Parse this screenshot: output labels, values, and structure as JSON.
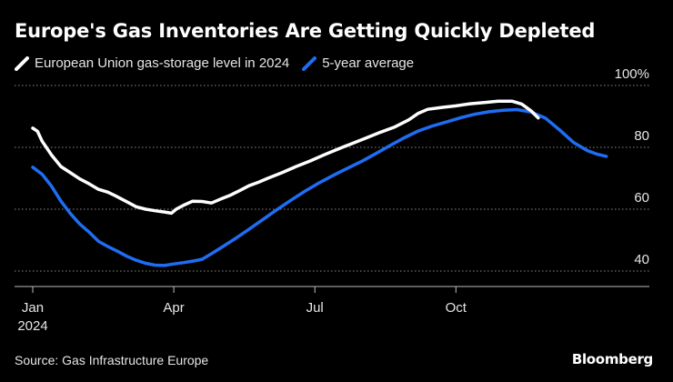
{
  "title": "Europe's Gas Inventories Are Getting Quickly Depleted",
  "source": "Source: Gas Infrastructure Europe",
  "logo": "Bloomberg",
  "chart_data": {
    "type": "line",
    "title": "Europe's Gas Inventories Are Getting Quickly Depleted",
    "ylim": [
      35,
      100
    ],
    "y_unit": "%",
    "yticks": [
      {
        "value": 100,
        "label": "100%"
      },
      {
        "value": 80,
        "label": "80"
      },
      {
        "value": 60,
        "label": "60"
      },
      {
        "value": 40,
        "label": "40"
      }
    ],
    "xticks": [
      {
        "month": 1,
        "label": "Jan",
        "sublabel": "2024"
      },
      {
        "month": 4,
        "label": "Apr",
        "sublabel": ""
      },
      {
        "month": 7,
        "label": "Jul",
        "sublabel": ""
      },
      {
        "month": 10,
        "label": "Oct",
        "sublabel": ""
      }
    ],
    "x_unit": "month (1 = Jan 1, 2024)",
    "grid": "horizontal dotted",
    "legend_position": "top-left",
    "series": [
      {
        "name": "European Union gas-storage level in 2024",
        "color": "#ffffff",
        "points": [
          [
            1.0,
            86.2
          ],
          [
            1.1,
            85.2
          ],
          [
            1.2,
            82.0
          ],
          [
            1.4,
            77.5
          ],
          [
            1.6,
            73.8
          ],
          [
            1.8,
            71.8
          ],
          [
            2.0,
            69.8
          ],
          [
            2.2,
            68.2
          ],
          [
            2.4,
            66.4
          ],
          [
            2.6,
            65.5
          ],
          [
            2.8,
            64.0
          ],
          [
            3.0,
            62.4
          ],
          [
            3.2,
            60.8
          ],
          [
            3.4,
            60.0
          ],
          [
            3.6,
            59.5
          ],
          [
            3.8,
            59.1
          ],
          [
            3.95,
            58.7
          ],
          [
            4.05,
            60.0
          ],
          [
            4.2,
            61.2
          ],
          [
            4.4,
            62.6
          ],
          [
            4.6,
            62.5
          ],
          [
            4.8,
            62.0
          ],
          [
            5.0,
            63.3
          ],
          [
            5.2,
            64.5
          ],
          [
            5.4,
            66.0
          ],
          [
            5.6,
            67.6
          ],
          [
            5.8,
            68.7
          ],
          [
            6.0,
            70.0
          ],
          [
            6.3,
            71.8
          ],
          [
            6.6,
            73.8
          ],
          [
            6.9,
            75.6
          ],
          [
            7.2,
            77.6
          ],
          [
            7.5,
            79.5
          ],
          [
            7.8,
            81.3
          ],
          [
            8.1,
            83.1
          ],
          [
            8.4,
            84.9
          ],
          [
            8.7,
            86.6
          ],
          [
            9.0,
            88.9
          ],
          [
            9.2,
            91.0
          ],
          [
            9.4,
            92.3
          ],
          [
            9.7,
            92.9
          ],
          [
            10.0,
            93.4
          ],
          [
            10.3,
            94.1
          ],
          [
            10.6,
            94.5
          ],
          [
            10.9,
            94.9
          ],
          [
            11.2,
            94.9
          ],
          [
            11.4,
            94.0
          ],
          [
            11.6,
            91.8
          ],
          [
            11.75,
            89.5
          ]
        ]
      },
      {
        "name": "5-year average",
        "color": "#1f6df2",
        "points": [
          [
            1.0,
            73.6
          ],
          [
            1.2,
            71.3
          ],
          [
            1.4,
            67.4
          ],
          [
            1.6,
            62.6
          ],
          [
            1.8,
            58.6
          ],
          [
            2.0,
            55.2
          ],
          [
            2.2,
            52.6
          ],
          [
            2.4,
            49.6
          ],
          [
            2.6,
            47.9
          ],
          [
            2.8,
            46.4
          ],
          [
            3.0,
            44.8
          ],
          [
            3.2,
            43.5
          ],
          [
            3.4,
            42.5
          ],
          [
            3.6,
            41.9
          ],
          [
            3.8,
            41.8
          ],
          [
            4.0,
            42.3
          ],
          [
            4.2,
            42.7
          ],
          [
            4.4,
            43.2
          ],
          [
            4.6,
            43.8
          ],
          [
            4.8,
            45.6
          ],
          [
            5.0,
            47.5
          ],
          [
            5.3,
            50.4
          ],
          [
            5.6,
            53.5
          ],
          [
            5.9,
            56.7
          ],
          [
            6.2,
            59.9
          ],
          [
            6.5,
            63.0
          ],
          [
            6.8,
            65.9
          ],
          [
            7.1,
            68.6
          ],
          [
            7.4,
            71.0
          ],
          [
            7.7,
            73.3
          ],
          [
            8.0,
            75.5
          ],
          [
            8.3,
            78.0
          ],
          [
            8.6,
            80.6
          ],
          [
            8.9,
            83.1
          ],
          [
            9.2,
            85.3
          ],
          [
            9.5,
            86.9
          ],
          [
            9.8,
            88.2
          ],
          [
            10.1,
            89.6
          ],
          [
            10.4,
            90.7
          ],
          [
            10.7,
            91.5
          ],
          [
            11.0,
            92.0
          ],
          [
            11.3,
            92.2
          ],
          [
            11.6,
            91.4
          ],
          [
            11.9,
            89.5
          ],
          [
            12.2,
            85.7
          ],
          [
            12.5,
            81.6
          ],
          [
            12.8,
            78.9
          ],
          [
            13.0,
            77.8
          ],
          [
            13.2,
            77.1
          ]
        ]
      }
    ]
  }
}
